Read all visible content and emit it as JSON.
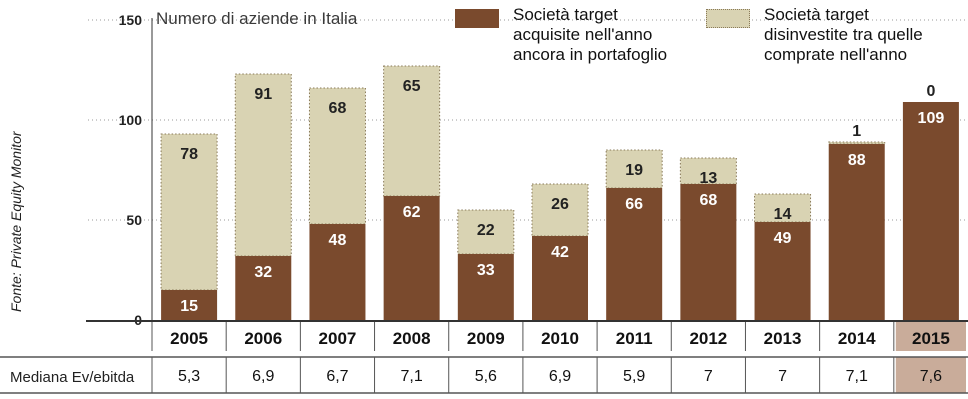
{
  "chart_data": {
    "type": "bar",
    "stacked": true,
    "title": "Numero di aziende in Italia",
    "source": "Fonte: Private Equity Monitor",
    "categories": [
      "2005",
      "2006",
      "2007",
      "2008",
      "2009",
      "2010",
      "2011",
      "2012",
      "2013",
      "2014",
      "2015"
    ],
    "highlighted_category": "2015",
    "series": [
      {
        "name": "Società target\nacquisite nell'anno\nancora in portafoglio",
        "values": [
          15,
          32,
          48,
          62,
          33,
          42,
          66,
          68,
          49,
          88,
          109
        ],
        "color": "#7a4a2d"
      },
      {
        "name": "Società target\ndisinvestite tra quelle\ncomprate nell'anno",
        "values": [
          78,
          91,
          68,
          65,
          22,
          26,
          19,
          13,
          14,
          1,
          0
        ],
        "color": "#d9d3b3"
      }
    ],
    "ylim": [
      0,
      150
    ],
    "yticks": [
      0,
      50,
      100,
      150
    ],
    "grid": true,
    "legend_position": "top-right",
    "table_row": {
      "label": "Mediana Ev/ebitda",
      "values": [
        "5,3",
        "6,9",
        "6,7",
        "7,1",
        "5,6",
        "6,9",
        "5,9",
        "7",
        "7",
        "7,1",
        "7,6"
      ]
    },
    "colors": {
      "highlight_bg": "#c9ac9a",
      "axis": "#333333",
      "grid": "#9a9a9a"
    }
  }
}
